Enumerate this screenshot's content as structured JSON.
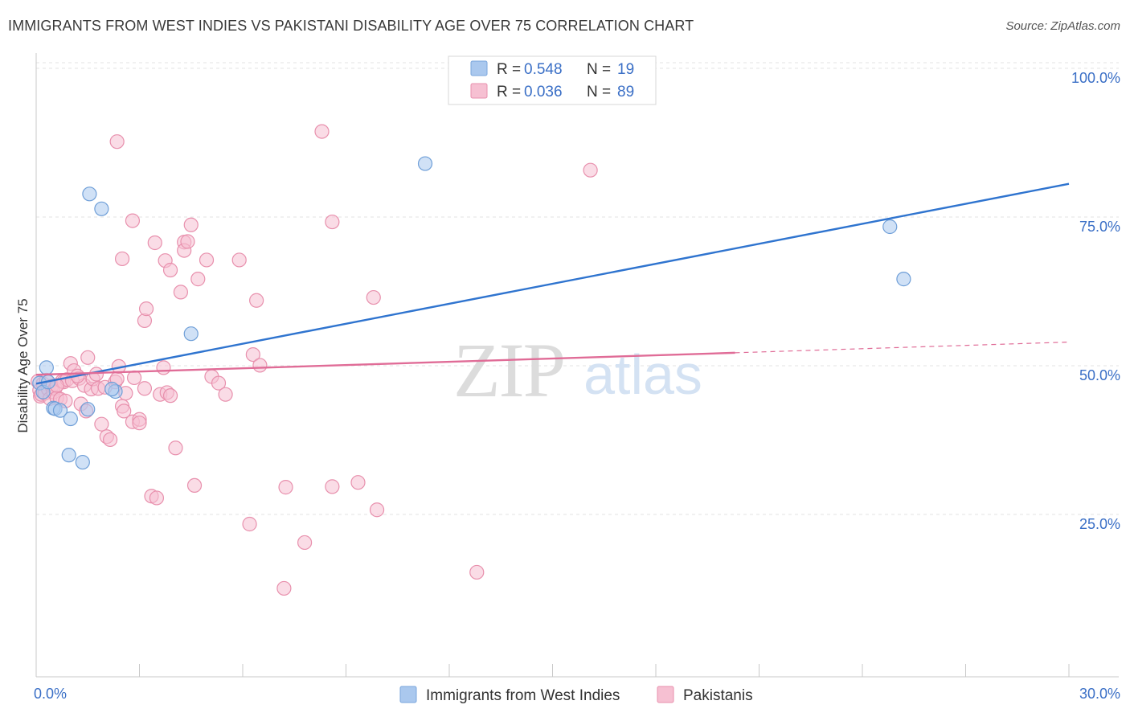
{
  "title": "IMMIGRANTS FROM WEST INDIES VS PAKISTANI DISABILITY AGE OVER 75 CORRELATION CHART",
  "source": "Source: ZipAtlas.com",
  "watermark": {
    "zip": "ZIP",
    "atlas": "atlas"
  },
  "legend": {
    "r_label": "R =",
    "n_label": "N =",
    "rows": [
      {
        "r": "0.548",
        "n": "19",
        "color": "#aac8ee",
        "stroke": "#7aa6dc"
      },
      {
        "r": "0.036",
        "n": "89",
        "color": "#f6c0d2",
        "stroke": "#e890ad"
      }
    ]
  },
  "chart_data": {
    "type": "scatter",
    "ylabel": "Disability Age Over 75",
    "xlim": [
      0,
      30
    ],
    "ylim": [
      0,
      105
    ],
    "x_tick_labels": [
      {
        "value": 0,
        "label": "0.0%"
      },
      {
        "value": 30,
        "label": "30.0%"
      }
    ],
    "y_tick_labels": [
      {
        "value": 25,
        "label": "25.0%"
      },
      {
        "value": 50,
        "label": "50.0%"
      },
      {
        "value": 75,
        "label": "75.0%"
      },
      {
        "value": 100,
        "label": "100.0%"
      }
    ],
    "grid": true,
    "legend_position": "top-center",
    "series": [
      {
        "name": "Immigrants from West Indies",
        "color": "#aac8ee",
        "stroke": "#6f9fd8",
        "line_color": "#2f74cf",
        "trend": {
          "x": [
            0,
            30
          ],
          "y": [
            48.6,
            82.2
          ]
        },
        "points": [
          [
            0.1,
            48.7
          ],
          [
            0.2,
            47.2
          ],
          [
            0.3,
            51.3
          ],
          [
            0.35,
            48.9
          ],
          [
            0.5,
            44.5
          ],
          [
            0.55,
            44.4
          ],
          [
            0.7,
            44.1
          ],
          [
            1.0,
            42.7
          ],
          [
            0.95,
            36.6
          ],
          [
            1.35,
            35.4
          ],
          [
            1.5,
            44.3
          ],
          [
            1.55,
            80.5
          ],
          [
            1.9,
            78.0
          ],
          [
            2.3,
            47.3
          ],
          [
            2.2,
            47.7
          ],
          [
            4.5,
            57.0
          ],
          [
            11.3,
            85.6
          ],
          [
            24.8,
            75.0
          ],
          [
            25.2,
            66.2
          ]
        ]
      },
      {
        "name": "Pakistanis",
        "color": "#f6c0d2",
        "stroke": "#e890ad",
        "line_color": "#e06c97",
        "trend": {
          "x": [
            0,
            20.3
          ],
          "y": [
            50.1,
            53.8
          ]
        },
        "trend_dashed": {
          "x": [
            20.3,
            30
          ],
          "y": [
            53.8,
            55.6
          ]
        },
        "points": [
          [
            0.05,
            49.0
          ],
          [
            0.1,
            47.5
          ],
          [
            0.12,
            46.5
          ],
          [
            0.15,
            46.8
          ],
          [
            0.2,
            48.6
          ],
          [
            0.25,
            47.0
          ],
          [
            0.3,
            49.2
          ],
          [
            0.35,
            47.7
          ],
          [
            0.4,
            46.1
          ],
          [
            0.45,
            48.2
          ],
          [
            0.5,
            47.2
          ],
          [
            0.55,
            47.8
          ],
          [
            0.6,
            46.2
          ],
          [
            0.7,
            46.0
          ],
          [
            0.75,
            49.0
          ],
          [
            0.8,
            48.9
          ],
          [
            0.85,
            45.7
          ],
          [
            0.9,
            49.3
          ],
          [
            1.0,
            52.0
          ],
          [
            1.05,
            49.1
          ],
          [
            1.1,
            50.8
          ],
          [
            1.25,
            49.5
          ],
          [
            1.3,
            45.2
          ],
          [
            1.4,
            48.3
          ],
          [
            1.45,
            44.0
          ],
          [
            1.5,
            53.0
          ],
          [
            1.6,
            47.7
          ],
          [
            1.65,
            49.4
          ],
          [
            1.75,
            50.2
          ],
          [
            1.8,
            47.8
          ],
          [
            1.9,
            41.8
          ],
          [
            2.0,
            48.0
          ],
          [
            2.05,
            39.7
          ],
          [
            2.15,
            39.2
          ],
          [
            2.3,
            48.9
          ],
          [
            2.35,
            49.4
          ],
          [
            2.4,
            51.5
          ],
          [
            2.5,
            69.6
          ],
          [
            2.5,
            44.8
          ],
          [
            2.55,
            44.0
          ],
          [
            2.6,
            47.0
          ],
          [
            2.8,
            42.2
          ],
          [
            2.85,
            49.6
          ],
          [
            2.8,
            76.0
          ],
          [
            3.0,
            42.6
          ],
          [
            3.0,
            42.0
          ],
          [
            3.15,
            59.2
          ],
          [
            3.2,
            61.2
          ],
          [
            3.15,
            47.8
          ],
          [
            3.35,
            29.7
          ],
          [
            3.45,
            72.3
          ],
          [
            3.5,
            29.4
          ],
          [
            3.6,
            46.8
          ],
          [
            3.7,
            51.3
          ],
          [
            3.75,
            69.3
          ],
          [
            3.8,
            47.1
          ],
          [
            3.9,
            46.6
          ],
          [
            3.9,
            67.7
          ],
          [
            4.05,
            37.8
          ],
          [
            4.2,
            64.0
          ],
          [
            4.3,
            72.4
          ],
          [
            4.3,
            71.0
          ],
          [
            4.4,
            72.5
          ],
          [
            4.5,
            75.3
          ],
          [
            4.6,
            31.5
          ],
          [
            4.7,
            66.2
          ],
          [
            4.95,
            69.4
          ],
          [
            5.1,
            49.8
          ],
          [
            5.3,
            48.7
          ],
          [
            5.5,
            46.8
          ],
          [
            5.9,
            69.4
          ],
          [
            6.2,
            25.0
          ],
          [
            6.3,
            53.5
          ],
          [
            6.4,
            62.6
          ],
          [
            6.5,
            51.7
          ],
          [
            2.35,
            89.3
          ],
          [
            8.3,
            91.0
          ],
          [
            7.2,
            14.2
          ],
          [
            7.25,
            31.2
          ],
          [
            7.8,
            21.9
          ],
          [
            8.6,
            75.8
          ],
          [
            8.6,
            31.3
          ],
          [
            9.35,
            32.0
          ],
          [
            9.8,
            63.1
          ],
          [
            9.9,
            27.4
          ],
          [
            12.8,
            16.9
          ],
          [
            16.1,
            84.5
          ],
          [
            0.6,
            48.3
          ],
          [
            1.2,
            49.9
          ]
        ]
      }
    ]
  },
  "bottom_legend": [
    {
      "label": "Immigrants from West Indies",
      "color": "#aac8ee",
      "stroke": "#7aa6dc"
    },
    {
      "label": "Pakistanis",
      "color": "#f6c0d2",
      "stroke": "#e890ad"
    }
  ]
}
